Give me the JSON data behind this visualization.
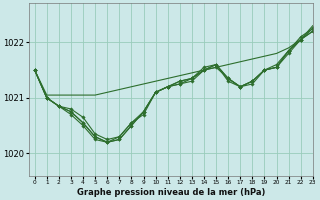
{
  "title": "Graphe pression niveau de la mer (hPa)",
  "bg_color": "#cce8e8",
  "grid_color": "#99ccbb",
  "line_color": "#2d6e2d",
  "xlim": [
    -0.5,
    23
  ],
  "ylim": [
    1019.6,
    1022.7
  ],
  "yticks": [
    1020,
    1021,
    1022
  ],
  "xticks": [
    0,
    1,
    2,
    3,
    4,
    5,
    6,
    7,
    8,
    9,
    10,
    11,
    12,
    13,
    14,
    15,
    16,
    17,
    18,
    19,
    20,
    21,
    22,
    23
  ],
  "series": [
    [
      1021.5,
      1021.0,
      1020.85,
      1020.8,
      1020.65,
      1020.35,
      1020.25,
      1020.3,
      1020.55,
      1020.7,
      1021.1,
      1021.2,
      1021.25,
      1021.35,
      1021.5,
      1021.55,
      1021.35,
      1021.2,
      1021.3,
      1021.5,
      1021.55,
      1021.8,
      1022.05,
      1022.25
    ],
    [
      1021.5,
      1021.0,
      1020.85,
      1020.75,
      1020.55,
      1020.3,
      1020.2,
      1020.25,
      1020.5,
      1020.75,
      1021.1,
      1021.2,
      1021.25,
      1021.3,
      1021.5,
      1021.6,
      1021.3,
      1021.2,
      1021.25,
      1021.5,
      1021.55,
      1021.85,
      1022.05,
      1022.2
    ],
    [
      1021.5,
      1021.0,
      1020.85,
      1020.75,
      1020.55,
      1020.3,
      1020.2,
      1020.3,
      1020.55,
      1020.75,
      1021.1,
      1021.2,
      1021.3,
      1021.35,
      1021.55,
      1021.6,
      1021.35,
      1021.2,
      1021.3,
      1021.5,
      1021.6,
      1021.85,
      1022.1,
      1022.25
    ],
    [
      1021.5,
      1021.0,
      1020.85,
      1020.7,
      1020.5,
      1020.25,
      1020.2,
      1020.25,
      1020.5,
      1020.75,
      1021.1,
      1021.2,
      1021.3,
      1021.35,
      1021.5,
      1021.6,
      1021.35,
      1021.2,
      1021.3,
      1021.5,
      1021.55,
      1021.85,
      1022.05,
      1022.2
    ],
    [
      1021.5,
      1021.05,
      1021.05,
      1021.05,
      1021.05,
      1021.05,
      1021.1,
      1021.15,
      1021.2,
      1021.25,
      1021.3,
      1021.35,
      1021.4,
      1021.45,
      1021.5,
      1021.55,
      1021.6,
      1021.65,
      1021.7,
      1021.75,
      1021.8,
      1021.9,
      1022.05,
      1022.3
    ]
  ]
}
